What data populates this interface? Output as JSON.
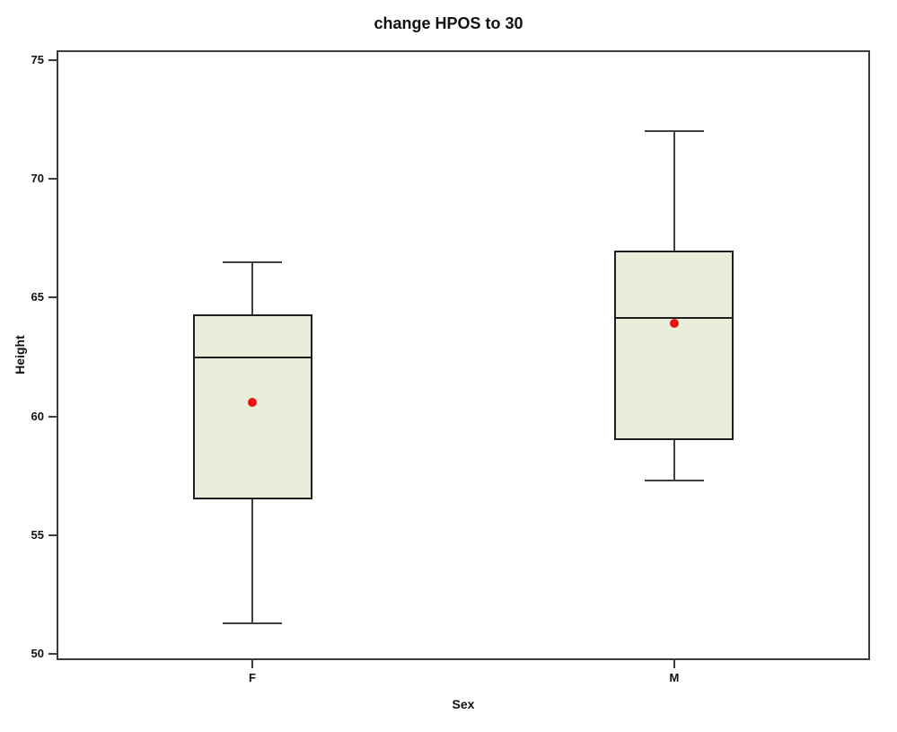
{
  "title": "change HPOS to 30",
  "chart_data": {
    "type": "boxplot",
    "title": "change HPOS to 30",
    "xlabel": "Sex",
    "ylabel": "Height",
    "ylim": [
      50,
      75
    ],
    "y_ticks": [
      75,
      70,
      65,
      60,
      55,
      50
    ],
    "categories": [
      "F",
      "M"
    ],
    "series": [
      {
        "category": "F",
        "whisker_low": 51.3,
        "q1": 56.5,
        "median": 62.5,
        "mean": 60.6,
        "q3": 64.3,
        "whisker_high": 66.5
      },
      {
        "category": "M",
        "whisker_low": 57.3,
        "q1": 59.0,
        "median": 64.15,
        "mean": 63.91,
        "q3": 67.0,
        "whisker_high": 72.0
      }
    ],
    "legend": "none",
    "grid": false,
    "colors": {
      "box_fill": "#e9edd9",
      "box_border": "#1f1f1f",
      "whisker": "#3f3f3f",
      "mean_marker": "#ee1111",
      "frame": "#3c3c3c",
      "text": "#111111",
      "background": "#ffffff"
    }
  }
}
